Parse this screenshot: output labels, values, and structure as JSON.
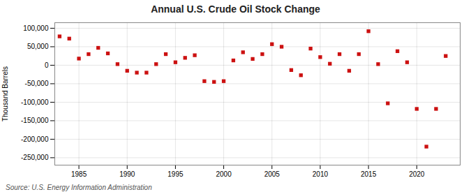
{
  "chart_data": {
    "type": "scatter",
    "title": "Annual U.S. Crude Oil Stock Change",
    "ylabel": "Thousand Barrels",
    "source": "Source: U.S. Energy Information Administration",
    "color": "#cc1111",
    "marker": "square",
    "grid": true,
    "xlim": [
      1982.5,
      2024.5
    ],
    "xticks": [
      1985,
      1990,
      1995,
      2000,
      2005,
      2010,
      2015,
      2020
    ],
    "ylim": [
      -270000,
      115000
    ],
    "yticks": [
      {
        "value": 100000,
        "label": "100,000"
      },
      {
        "value": 50000,
        "label": "50,000"
      },
      0,
      {
        "value": -50000,
        "label": "-50,000"
      },
      {
        "value": -100000,
        "label": "-100,000"
      },
      {
        "value": -150000,
        "label": "-150,000"
      },
      {
        "value": -200000,
        "label": "-200,000"
      },
      {
        "value": -250000,
        "label": "-250,000"
      }
    ],
    "x": [
      1983,
      1984,
      1985,
      1986,
      1987,
      1988,
      1989,
      1990,
      1991,
      1992,
      1993,
      1994,
      1995,
      1996,
      1997,
      1998,
      1999,
      2000,
      2001,
      2002,
      2003,
      2004,
      2005,
      2006,
      2007,
      2008,
      2009,
      2010,
      2011,
      2012,
      2013,
      2014,
      2015,
      2016,
      2017,
      2018,
      2019,
      2020,
      2021,
      2022,
      2023
    ],
    "values": [
      78000,
      72000,
      18000,
      30000,
      47000,
      32000,
      3000,
      -15000,
      -20000,
      -20000,
      3000,
      30000,
      8000,
      20000,
      27000,
      -43000,
      -45000,
      -43000,
      13000,
      35000,
      17000,
      30000,
      57000,
      50000,
      -13000,
      -27000,
      45000,
      22000,
      4000,
      30000,
      -15000,
      30000,
      92000,
      3000,
      -103000,
      38000,
      8000,
      -118000,
      -220000,
      -118000,
      25000
    ]
  }
}
